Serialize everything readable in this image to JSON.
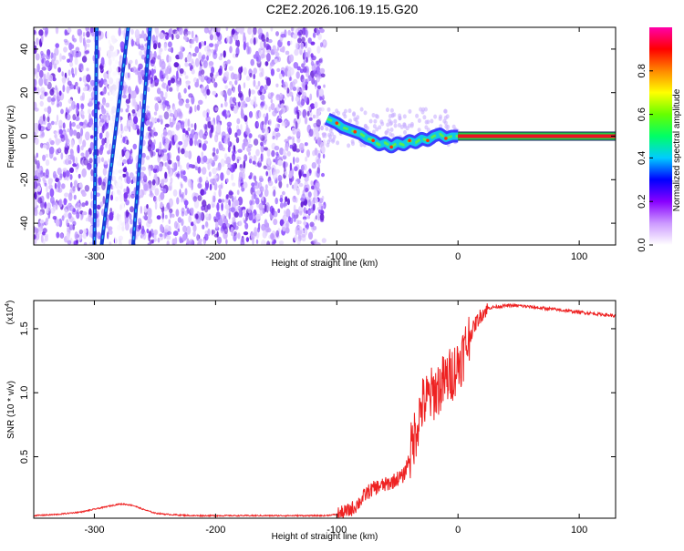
{
  "title": "C2E2.2026.106.19.15.G20",
  "chart_data": [
    {
      "type": "heatmap",
      "xlabel": "Height of straight line (km)",
      "ylabel": "Frequency (Hz)",
      "xlim": [
        -350,
        130
      ],
      "ylim": [
        -50,
        50
      ],
      "x_ticks": [
        -300,
        -200,
        -100,
        0,
        100
      ],
      "y_ticks": [
        -40,
        -20,
        0,
        20,
        40
      ],
      "colorbar": {
        "label": "Normalized spectral amplitude",
        "range": [
          0,
          1
        ],
        "ticks": [
          "0.0",
          "0.2",
          "0.4",
          "0.6",
          "0.8"
        ],
        "tick_values": [
          0,
          0.2,
          0.4,
          0.6,
          0.8
        ],
        "colors": [
          "#ffffff",
          "#cc99ff",
          "#8800ff",
          "#0000ff",
          "#00ccff",
          "#00ff66",
          "#66ff00",
          "#ffff00",
          "#ff8800",
          "#ff0000",
          "#ff00aa"
        ]
      },
      "regions": {
        "noise_x": [
          -350,
          -110
        ],
        "signal_x": [
          -110,
          0
        ],
        "tone_x": [
          0,
          130
        ],
        "tone_frequency": 0
      },
      "diagonal_streaks": [
        {
          "x_top": -298,
          "x_bottom": -300
        },
        {
          "x_top": -272,
          "x_bottom": -294
        },
        {
          "x_top": -254,
          "x_bottom": -268
        }
      ],
      "signal_track": [
        {
          "x": -108,
          "y": 8
        },
        {
          "x": -100,
          "y": 6
        },
        {
          "x": -95,
          "y": 4
        },
        {
          "x": -90,
          "y": 3
        },
        {
          "x": -85,
          "y": 2
        },
        {
          "x": -80,
          "y": 1
        },
        {
          "x": -75,
          "y": -1
        },
        {
          "x": -70,
          "y": -2
        },
        {
          "x": -65,
          "y": -4
        },
        {
          "x": -60,
          "y": -3
        },
        {
          "x": -55,
          "y": -5
        },
        {
          "x": -50,
          "y": -3
        },
        {
          "x": -45,
          "y": -4
        },
        {
          "x": -40,
          "y": -2
        },
        {
          "x": -35,
          "y": -3
        },
        {
          "x": -30,
          "y": -1
        },
        {
          "x": -25,
          "y": -2
        },
        {
          "x": -20,
          "y": 0
        },
        {
          "x": -15,
          "y": 1
        },
        {
          "x": -10,
          "y": -1
        },
        {
          "x": -5,
          "y": 0
        },
        {
          "x": 0,
          "y": 0
        }
      ]
    },
    {
      "type": "line",
      "xlabel": "Height of straight line (km)",
      "ylabel": "SNR (10 * v/v)",
      "y_multiplier": "(x10",
      "y_multiplier_exp": "4",
      "y_multiplier_close": ")",
      "xlim": [
        -350,
        130
      ],
      "ylim": [
        0.02,
        1.72
      ],
      "x_ticks": [
        -300,
        -200,
        -100,
        0,
        100
      ],
      "y_ticks": [
        0.5,
        1.0,
        1.5
      ],
      "y_tick_labels": [
        "0.5",
        "1.0",
        "1.5"
      ],
      "series": [
        {
          "color": "#ee2222",
          "x": [
            -350,
            -330,
            -310,
            -295,
            -285,
            -280,
            -275,
            -268,
            -260,
            -250,
            -240,
            -220,
            -200,
            -180,
            -160,
            -140,
            -120,
            -110,
            -100,
            -95,
            -90,
            -85,
            -80,
            -75,
            -70,
            -65,
            -60,
            -55,
            -50,
            -45,
            -40,
            -35,
            -30,
            -25,
            -20,
            -15,
            -10,
            -5,
            0,
            5,
            10,
            15,
            20,
            25,
            30,
            40,
            50,
            60,
            70,
            80,
            90,
            100,
            110,
            120,
            130
          ],
          "y": [
            0.04,
            0.05,
            0.07,
            0.1,
            0.12,
            0.13,
            0.13,
            0.12,
            0.09,
            0.06,
            0.05,
            0.04,
            0.04,
            0.04,
            0.04,
            0.04,
            0.04,
            0.04,
            0.05,
            0.06,
            0.08,
            0.11,
            0.16,
            0.22,
            0.25,
            0.27,
            0.28,
            0.3,
            0.33,
            0.35,
            0.5,
            0.7,
            0.9,
            0.95,
            1.0,
            1.05,
            1.1,
            1.15,
            1.22,
            1.32,
            1.45,
            1.55,
            1.62,
            1.66,
            1.67,
            1.68,
            1.68,
            1.67,
            1.66,
            1.65,
            1.64,
            1.63,
            1.62,
            1.61,
            1.6
          ]
        }
      ]
    }
  ]
}
